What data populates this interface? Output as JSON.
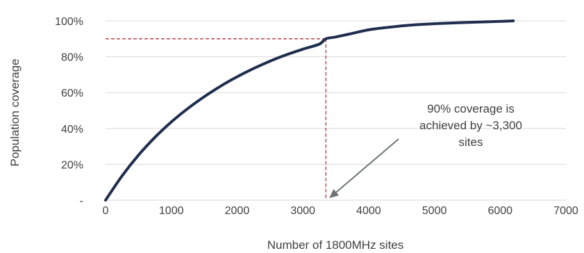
{
  "chart_data": {
    "type": "line",
    "title": "",
    "xlabel": "Number of 1800MHz sites",
    "ylabel": "Population coverage",
    "xlim": [
      0,
      7000
    ],
    "ylim": [
      0,
      100
    ],
    "x_ticks": [
      0,
      1000,
      2000,
      3000,
      4000,
      5000,
      6000,
      7000
    ],
    "x_tick_labels": [
      "0",
      "1000",
      "2000",
      "3000",
      "4000",
      "5000",
      "6000",
      "7000"
    ],
    "y_ticks": [
      0,
      20,
      40,
      60,
      80,
      100
    ],
    "y_tick_labels": [
      "-",
      "20%",
      "40%",
      "60%",
      "80%",
      "100%"
    ],
    "grid": "horizontal",
    "legend": "none",
    "series": [
      {
        "color": "#1f2d4e",
        "x": [
          0,
          250,
          500,
          750,
          1000,
          1250,
          1500,
          1750,
          2000,
          2250,
          2500,
          2750,
          3000,
          3250,
          3350,
          3500,
          3750,
          4000,
          4250,
          4500,
          4750,
          5000,
          5250,
          5500,
          5750,
          6000,
          6200
        ],
        "y": [
          0,
          13.5,
          25.1,
          35.0,
          43.6,
          51.1,
          57.7,
          63.6,
          68.8,
          73.4,
          77.5,
          81.1,
          84.2,
          87.0,
          90.0,
          91.0,
          93.0,
          95.0,
          96.2,
          97.2,
          97.9,
          98.4,
          98.8,
          99.1,
          99.4,
          99.7,
          100
        ]
      }
    ],
    "reference": {
      "x": 3350,
      "y": 90,
      "color": "#b03040",
      "style": "dashed"
    },
    "annotation": {
      "lines": [
        "90% coverage is",
        "achieved by ~3,300",
        "sites"
      ],
      "arrow_to_x": 3350,
      "arrow_to_y": 0
    }
  },
  "colors": {
    "grid": "#d9d9d9",
    "text": "#404040",
    "arrow": "#6d7377"
  }
}
